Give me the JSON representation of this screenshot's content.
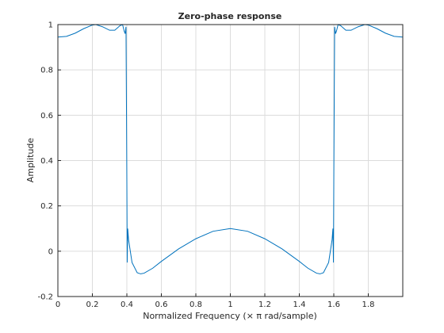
{
  "chart_data": {
    "type": "line",
    "title": "Zero-phase response",
    "x_label": "Normalized Frequency (× π rad/sample)",
    "y_label": "Amplitude",
    "x": [
      0,
      0.05,
      0.1,
      0.15,
      0.2,
      0.22,
      0.26,
      0.3,
      0.33,
      0.36,
      0.375,
      0.385,
      0.39,
      0.395,
      0.398,
      0.4,
      0.402,
      0.405,
      0.41,
      0.43,
      0.46,
      0.48,
      0.5,
      0.55,
      0.6,
      0.7,
      0.8,
      0.9,
      1.0,
      1.1,
      1.2,
      1.3,
      1.4,
      1.45,
      1.5,
      1.52,
      1.54,
      1.57,
      1.59,
      1.595,
      1.598,
      1.6,
      1.602,
      1.605,
      1.61,
      1.615,
      1.625,
      1.64,
      1.67,
      1.7,
      1.74,
      1.78,
      1.8,
      1.85,
      1.9,
      1.95,
      1.998
    ],
    "series": [
      {
        "name": "Amplitude",
        "color": "#0072bd",
        "values": [
          0.945,
          0.948,
          0.962,
          0.982,
          0.998,
          1.0,
          0.99,
          0.975,
          0.975,
          0.995,
          1.0,
          0.97,
          0.96,
          0.99,
          0.6,
          0.3,
          -0.05,
          0.1,
          0.05,
          -0.05,
          -0.095,
          -0.1,
          -0.097,
          -0.075,
          -0.045,
          0.01,
          0.055,
          0.088,
          0.1,
          0.088,
          0.055,
          0.01,
          -0.045,
          -0.075,
          -0.097,
          -0.1,
          -0.095,
          -0.05,
          0.05,
          0.1,
          -0.05,
          0.3,
          0.6,
          0.99,
          0.96,
          0.97,
          1.0,
          0.995,
          0.975,
          0.975,
          0.99,
          1.0,
          0.998,
          0.982,
          0.962,
          0.948,
          0.945
        ]
      }
    ],
    "xlim": [
      0,
      2
    ],
    "ylim": [
      -0.2,
      1
    ],
    "xticks": [
      0,
      0.2,
      0.4,
      0.6,
      0.8,
      1,
      1.2,
      1.4,
      1.6,
      1.8
    ],
    "yticks": [
      -0.2,
      0,
      0.2,
      0.4,
      0.6,
      0.8,
      1
    ],
    "grid": true
  }
}
